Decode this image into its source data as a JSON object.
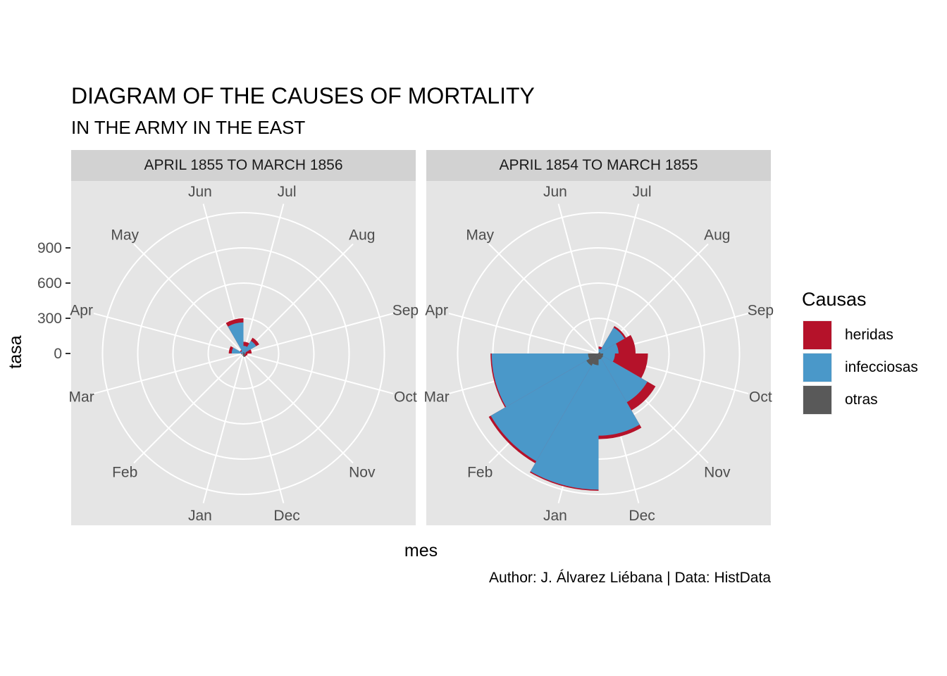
{
  "title": "DIAGRAM OF THE CAUSES OF MORTALITY",
  "subtitle": "IN THE ARMY IN THE EAST",
  "caption": "Author: J. Álvarez Liébana | Data: HistData",
  "colors": {
    "heridas": "#b5122a",
    "infecciosas": "#4a98c9",
    "otras": "#595959",
    "panel_bg": "#e5e5e5",
    "strip_bg": "#d2d2d2",
    "grid": "#ffffff"
  },
  "chart_data": {
    "type": "polar-area",
    "xlabel": "mes",
    "ylabel": "tasa",
    "y_ticks": [
      0,
      300,
      600,
      900
    ],
    "grid_rings": [
      0,
      300,
      600,
      900,
      1200
    ],
    "month_labels": [
      "Jan",
      "Feb",
      "Mar",
      "Apr",
      "May",
      "Jun",
      "Jul",
      "Aug",
      "Sep",
      "Oct",
      "Nov",
      "Dec"
    ],
    "legend": {
      "title": "Causas",
      "items": [
        {
          "name": "heridas",
          "color": "#b5122a"
        },
        {
          "name": "infecciosas",
          "color": "#4a98c9"
        },
        {
          "name": "otras",
          "color": "#595959"
        }
      ]
    },
    "panels": [
      {
        "label": "APRIL 1855 TO MARCH 1856",
        "months": [
          "Apr",
          "May",
          "Jun",
          "Jul",
          "Aug",
          "Sep",
          "Oct",
          "Nov",
          "Dec",
          "Jan",
          "Feb",
          "Mar"
        ],
        "series": [
          {
            "name": "heridas",
            "values": [
              125,
              35,
              300,
              100,
              155,
              70,
              35,
              30,
              25,
              15,
              10,
              20
            ]
          },
          {
            "name": "infecciosas",
            "values": [
              100,
              25,
              265,
              65,
              125,
              20,
              10,
              10,
              25,
              15,
              10,
              15
            ]
          },
          {
            "name": "otras",
            "values": [
              5,
              5,
              10,
              10,
              10,
              10,
              15,
              10,
              30,
              20,
              5,
              5
            ]
          }
        ]
      },
      {
        "label": "APRIL 1854 TO MARCH 1855",
        "months": [
          "Apr",
          "May",
          "Jun",
          "Jul",
          "Aug",
          "Sep",
          "Oct",
          "Nov",
          "Dec",
          "Jan",
          "Feb",
          "Mar"
        ],
        "series": [
          {
            "name": "heridas",
            "values": [
              0,
              0,
              0,
              60,
              270,
              315,
              420,
              560,
              730,
              1170,
              1080,
              920
            ]
          },
          {
            "name": "infecciosas",
            "values": [
              0,
              0,
              0,
              40,
              255,
              170,
              140,
              480,
              700,
              1160,
              1060,
              910
            ]
          },
          {
            "name": "otras",
            "values": [
              5,
              5,
              5,
              5,
              15,
              15,
              40,
              45,
              50,
              100,
              120,
              90
            ]
          }
        ]
      }
    ]
  }
}
